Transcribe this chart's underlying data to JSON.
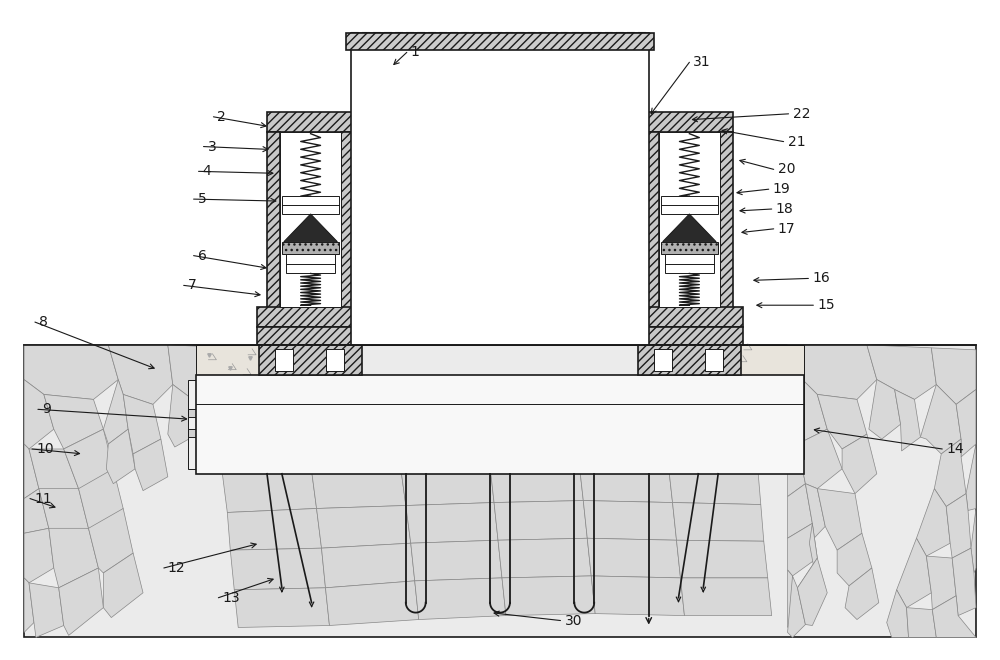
{
  "bg_color": "#ffffff",
  "lc": "#1a1a1a",
  "fig_width": 10.0,
  "fig_height": 6.6,
  "font_size": 10,
  "hatch_gray": "#bbbbbb",
  "rock_bg": "#e8e8e8",
  "rock_cell": "#d4d4d4",
  "concrete_bg": "#ece8e0"
}
